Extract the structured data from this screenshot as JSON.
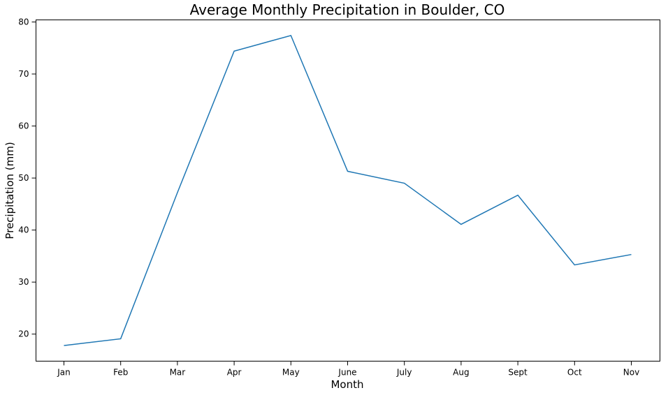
{
  "chart_data": {
    "type": "line",
    "title": "Average Monthly Precipitation in Boulder, CO",
    "xlabel": "Month",
    "ylabel": "Precipitation (mm)",
    "categories": [
      "Jan",
      "Feb",
      "Mar",
      "Apr",
      "May",
      "June",
      "July",
      "Aug",
      "Sept",
      "Oct",
      "Nov"
    ],
    "values": [
      17.8,
      19.1,
      47.2,
      74.4,
      77.4,
      51.3,
      49.0,
      41.1,
      46.7,
      33.3,
      35.3
    ],
    "y_ticks": [
      20,
      30,
      40,
      50,
      60,
      70,
      80
    ],
    "ylim": [
      14.8,
      80.4
    ],
    "grid": false,
    "legend": "none",
    "line_color": "#1f77b4"
  }
}
